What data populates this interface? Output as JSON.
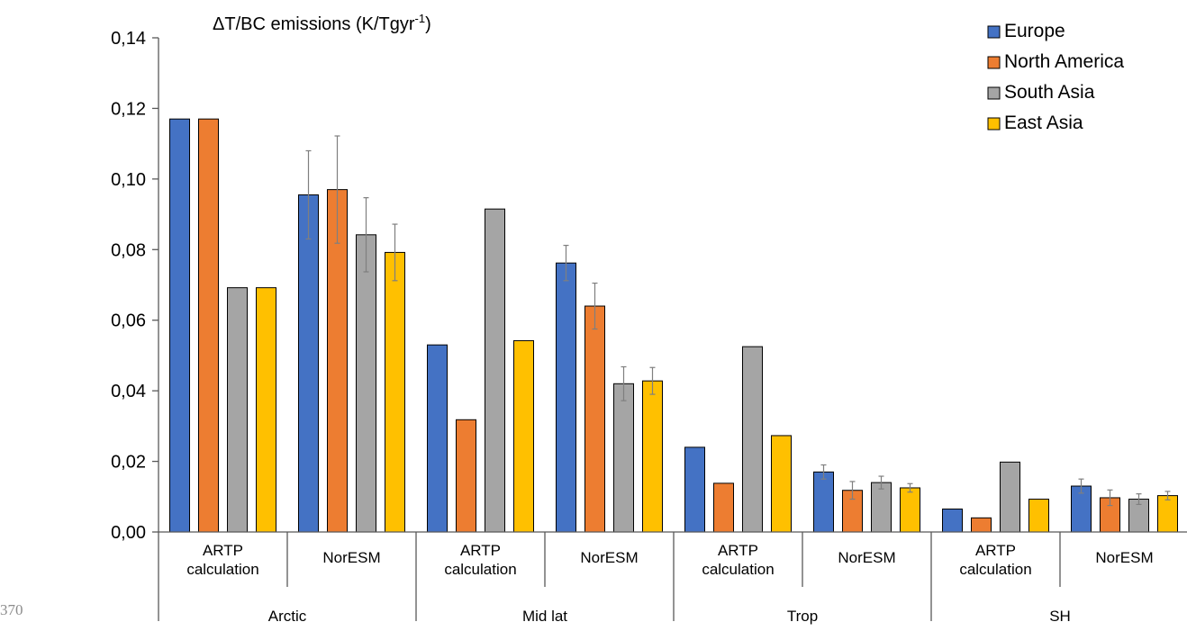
{
  "page_number": "370",
  "chart_data": {
    "type": "bar",
    "title": "ΔT/BC emissions (K/Tgyr",
    "title_superscript": "-1",
    "title_suffix": ")",
    "ylim": [
      0,
      0.14
    ],
    "yticks": [
      "0,00",
      "0,02",
      "0,04",
      "0,06",
      "0,08",
      "0,10",
      "0,12",
      "0,14"
    ],
    "groups": [
      {
        "region": "Arctic",
        "categories": [
          [
            "ARTP",
            "calculation"
          ],
          [
            "NorESM"
          ]
        ]
      },
      {
        "region": "Mid lat",
        "categories": [
          [
            "ARTP",
            "calculation"
          ],
          [
            "NorESM"
          ]
        ]
      },
      {
        "region": "Trop",
        "categories": [
          [
            "ARTP",
            "calculation"
          ],
          [
            "NorESM"
          ]
        ]
      },
      {
        "region": "SH",
        "categories": [
          [
            "ARTP",
            "calculation"
          ],
          [
            "NorESM"
          ]
        ]
      }
    ],
    "series": [
      {
        "name": "Europe",
        "color": "#4472c4",
        "values": [
          0.117,
          0.0955,
          0.053,
          0.0762,
          0.024,
          0.017,
          0.0065,
          0.013
        ],
        "errors": [
          null,
          0.0125,
          null,
          0.005,
          null,
          0.002,
          null,
          0.002
        ]
      },
      {
        "name": "North America",
        "color": "#ed7d31",
        "values": [
          0.117,
          0.097,
          0.0318,
          0.064,
          0.0138,
          0.0118,
          0.004,
          0.0097
        ],
        "errors": [
          null,
          0.0152,
          null,
          0.0065,
          null,
          0.0025,
          null,
          0.0022
        ]
      },
      {
        "name": "South Asia",
        "color": "#a5a5a5",
        "values": [
          0.0692,
          0.0842,
          0.0915,
          0.042,
          0.0525,
          0.014,
          0.0198,
          0.0093
        ],
        "errors": [
          null,
          0.0105,
          null,
          0.0048,
          null,
          0.0018,
          null,
          0.0015
        ]
      },
      {
        "name": "East Asia",
        "color": "#ffc000",
        "values": [
          0.0692,
          0.0792,
          0.0542,
          0.0428,
          0.0273,
          0.0125,
          0.0093,
          0.0103
        ],
        "errors": [
          null,
          0.008,
          null,
          0.0038,
          null,
          0.0012,
          null,
          0.0012
        ]
      }
    ],
    "legend_position": "top-right",
    "grid": false
  }
}
